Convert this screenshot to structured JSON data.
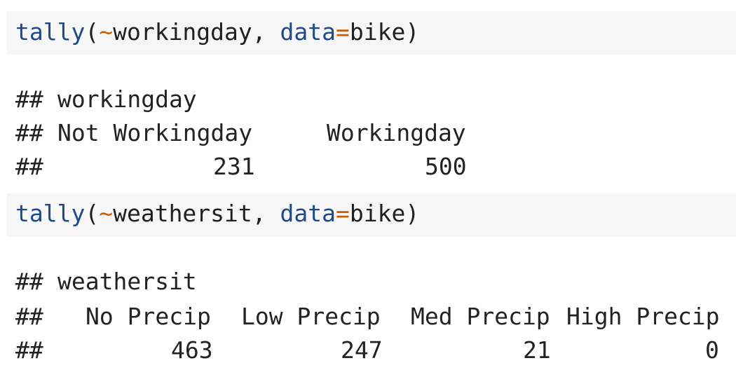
{
  "blocks": [
    {
      "code": {
        "fn": "tally",
        "open": "(",
        "tilde": "~",
        "var": "workingday",
        "sep": ", ",
        "arg_name": "data",
        "eq": "=",
        "arg_value": "bike",
        "close": ")"
      },
      "output": {
        "prefix": "##",
        "header": "workingday",
        "levels": [
          "Not Workingday",
          "Workingday"
        ],
        "counts": [
          "231",
          "500"
        ]
      }
    },
    {
      "code": {
        "fn": "tally",
        "open": "(",
        "tilde": "~",
        "var": "weathersit",
        "sep": ", ",
        "arg_name": "data",
        "eq": "=",
        "arg_value": "bike",
        "close": ")"
      },
      "output": {
        "prefix": "##",
        "header": "weathersit",
        "levels": [
          "No Precip",
          "Low Precip",
          "Med Precip",
          "High Precip"
        ],
        "counts": [
          "463",
          "247",
          "21",
          "0"
        ]
      }
    }
  ],
  "colors": {
    "function": "#204a87",
    "operator": "#ce5c00",
    "code_background": "#f6f6f6"
  }
}
